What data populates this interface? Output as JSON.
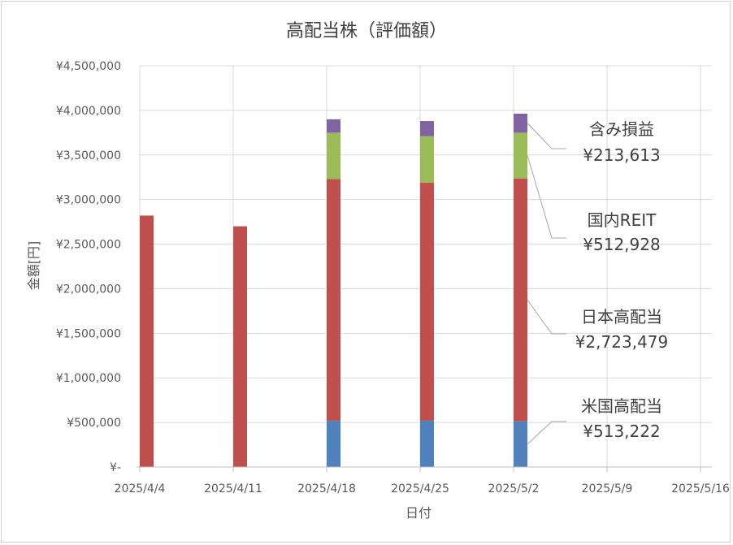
{
  "chart_data": {
    "type": "bar",
    "stacked": true,
    "title": "高配当株（評価額）",
    "xlabel": "日付",
    "ylabel": "金額[円]",
    "ylim": [
      0,
      4500000
    ],
    "y_ticks": [
      0,
      500000,
      1000000,
      1500000,
      2000000,
      2500000,
      3000000,
      3500000,
      4000000,
      4500000
    ],
    "y_tick_labels": [
      "¥-",
      "¥500,000",
      "¥1,000,000",
      "¥1,500,000",
      "¥2,000,000",
      "¥2,500,000",
      "¥3,000,000",
      "¥3,500,000",
      "¥4,000,000",
      "¥4,500,000"
    ],
    "x_tick_labels": [
      "2025/4/4",
      "2025/4/11",
      "2025/4/18",
      "2025/4/25",
      "2025/5/2",
      "2025/5/9",
      "2025/5/16"
    ],
    "grid": true,
    "categories": [
      "2025/4/4",
      "2025/4/11",
      "2025/4/18",
      "2025/4/25",
      "2025/5/2"
    ],
    "series": [
      {
        "name": "米国高配当",
        "color": "#4f81bd",
        "values": [
          0,
          0,
          520000,
          520000,
          513222
        ]
      },
      {
        "name": "日本高配当",
        "color": "#c0504d",
        "values": [
          2820000,
          2700000,
          2710000,
          2670000,
          2723479
        ]
      },
      {
        "name": "国内REIT",
        "color": "#9bbb59",
        "values": [
          0,
          0,
          520000,
          520000,
          512928
        ]
      },
      {
        "name": "含み損益",
        "color": "#8064a2",
        "values": [
          0,
          0,
          150000,
          170000,
          213613
        ]
      }
    ],
    "annotations": [
      {
        "series": "含み損益",
        "value_label": "¥213,613"
      },
      {
        "series": "国内REIT",
        "value_label": "¥512,928"
      },
      {
        "series": "日本高配当",
        "value_label": "¥2,723,479"
      },
      {
        "series": "米国高配当",
        "value_label": "¥513,222"
      }
    ]
  }
}
